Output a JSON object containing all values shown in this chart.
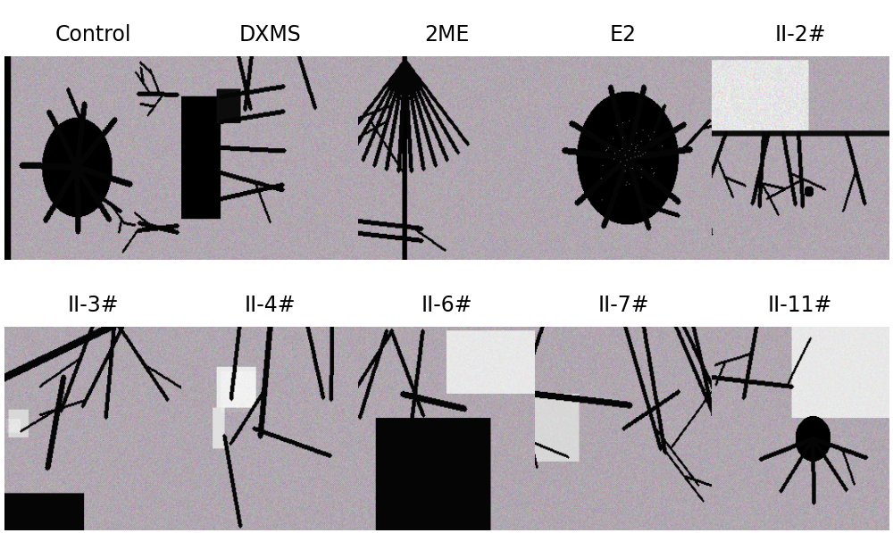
{
  "row1_labels": [
    "Control",
    "DXMS",
    "2ME",
    "E2",
    "II-2#"
  ],
  "row2_labels": [
    "II-3#",
    "II-4#",
    "II-6#",
    "II-7#",
    "II-11#"
  ],
  "bg_color": "#ffffff",
  "label_fontsize": 17,
  "label_color": "#000000",
  "figure_width": 10.0,
  "figure_height": 5.97
}
